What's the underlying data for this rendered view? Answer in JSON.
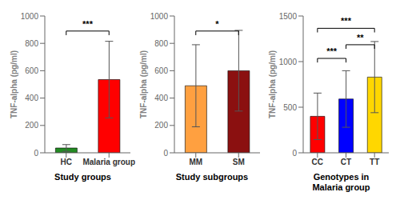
{
  "chart_data": [
    {
      "type": "bar",
      "categories": [
        "HC",
        "Malaria group"
      ],
      "values": [
        35,
        535
      ],
      "errors_lo": [
        25,
        280
      ],
      "errors_hi": [
        25,
        280
      ],
      "colors": [
        "#228B22",
        "#FF0000"
      ],
      "ylim": [
        0,
        1000
      ],
      "yticks": [
        0,
        200,
        400,
        600,
        800,
        1000
      ],
      "ylabel": "TNF-alpha (pg/ml)",
      "xlabel": "Study groups",
      "grid": false,
      "annotations": [
        {
          "from": "HC",
          "to": "Malaria group",
          "y": 860,
          "text": "***"
        }
      ]
    },
    {
      "type": "bar",
      "categories": [
        "MM",
        "SM"
      ],
      "values": [
        490,
        600
      ],
      "errors_lo": [
        300,
        295
      ],
      "errors_hi": [
        300,
        295
      ],
      "colors": [
        "#FFA040",
        "#8B1010"
      ],
      "ylim": [
        0,
        1000
      ],
      "yticks": [
        0,
        200,
        400,
        600,
        800,
        1000
      ],
      "ylabel": "TNF-alpha (pg/ml)",
      "xlabel": "Study subgroups",
      "grid": false,
      "annotations": [
        {
          "from": "MM",
          "to": "SM",
          "y": 860,
          "text": "*"
        }
      ]
    },
    {
      "type": "bar",
      "categories": [
        "CC",
        "CT",
        "TT"
      ],
      "values": [
        400,
        590,
        830
      ],
      "errors_lo": [
        255,
        310,
        390
      ],
      "errors_hi": [
        255,
        310,
        390
      ],
      "colors": [
        "#FF0000",
        "#0000FF",
        "#FFD700"
      ],
      "ylim": [
        0,
        1500
      ],
      "yticks": [
        0,
        500,
        1000,
        1500
      ],
      "ylabel": "TNF-alpha (pg/ml)",
      "xlabel": "Genotypes in\nMalaria group",
      "grid": false,
      "annotations": [
        {
          "from": "CC",
          "to": "CT",
          "y": 990,
          "text": "***"
        },
        {
          "from": "CC",
          "to": "TT",
          "y": 1320,
          "text": "***"
        },
        {
          "from": "CT",
          "to": "TT",
          "y": 1140,
          "text": "**"
        }
      ]
    }
  ]
}
